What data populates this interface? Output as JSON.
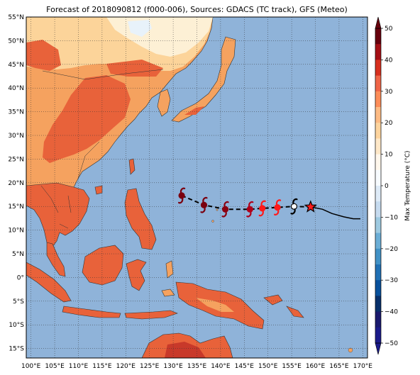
{
  "title": "Forecast of 2018090812 (f000-006), Sources: GDACS (TC track), GFS (Meteo)",
  "map": {
    "lon_range": [
      99,
      171
    ],
    "lat_range": [
      -17,
      55
    ],
    "lat_ticks": [
      "55°N",
      "50°N",
      "45°N",
      "40°N",
      "35°N",
      "30°N",
      "25°N",
      "20°N",
      "15°N",
      "10°N",
      "5°N",
      "0°",
      "5°S",
      "10°S",
      "15°S"
    ],
    "lon_ticks": [
      "100°E",
      "105°E",
      "110°E",
      "115°E",
      "120°E",
      "125°E",
      "130°E",
      "135°E",
      "140°E",
      "145°E",
      "150°E",
      "155°E",
      "160°E",
      "165°E",
      "170°E"
    ],
    "ocean_color": "#8fb3d9",
    "grid": true
  },
  "track": {
    "forecast_points": [
      {
        "lon": 131.8,
        "lat": 17.3,
        "color": "#7a0010",
        "type": "cyclone-icon"
      },
      {
        "lon": 136.5,
        "lat": 15.3,
        "color": "#7a0010",
        "type": "cyclone-icon"
      },
      {
        "lon": 141.0,
        "lat": 14.4,
        "color": "#8b0010",
        "type": "cyclone-icon"
      },
      {
        "lon": 146.2,
        "lat": 14.4,
        "color": "#b0001a",
        "type": "cyclone-icon"
      },
      {
        "lon": 148.8,
        "lat": 14.6,
        "color": "#ff1a1a",
        "type": "cyclone-icon"
      },
      {
        "lon": 152.0,
        "lat": 14.8,
        "color": "#ff1a1a",
        "type": "cyclone-icon"
      },
      {
        "lon": 155.5,
        "lat": 15.0,
        "color": "#ffffff",
        "type": "cyclone-icon"
      }
    ],
    "current_position": {
      "lon": 159.0,
      "lat": 14.9,
      "color": "#ff1a1a",
      "type": "star-icon"
    },
    "past_track": [
      [
        159.0,
        14.9
      ],
      [
        161.5,
        14.4
      ],
      [
        163.5,
        13.5
      ],
      [
        166.0,
        12.8
      ],
      [
        168.0,
        12.4
      ],
      [
        169.5,
        12.4
      ]
    ]
  },
  "colorbar": {
    "label": "Max Temperature (°C)",
    "ticks": [
      "50",
      "40",
      "30",
      "20",
      "10",
      "0",
      "−10",
      "−20",
      "−30",
      "−40",
      "−50"
    ],
    "colors_top_to_bottom": [
      "#67000d",
      "#a50f15",
      "#d7301f",
      "#ef6548",
      "#fc8d59",
      "#fdbb84",
      "#fdd49e",
      "#fee8c8",
      "#fff7ec",
      "#f7fbff",
      "#deebf7",
      "#c6dbef",
      "#9ecae1",
      "#6baed6",
      "#4292c6",
      "#2171b5",
      "#08519c",
      "#08306b",
      "#1a1a6e",
      "#1b1b8a"
    ]
  },
  "colors": {
    "land_hot": "#e8623a",
    "land_warm": "#f5a25f",
    "land_mild": "#fcd49a",
    "land_cool": "#fdf0d5",
    "land_cold": "#e8f2fa"
  }
}
